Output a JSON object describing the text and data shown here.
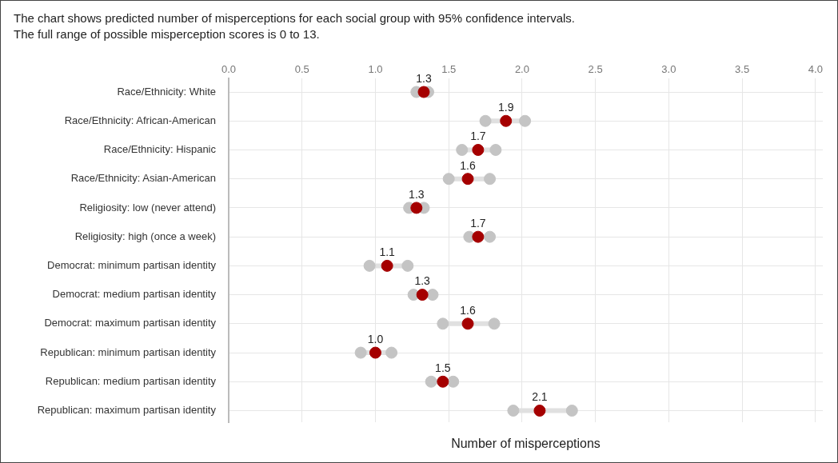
{
  "chart_data": {
    "type": "scatter",
    "orientation": "horizontal",
    "title": "The chart shows predicted number of misperceptions for each social group with 95% confidence intervals.",
    "subtitle": "The full range of possible misperception scores is 0 to 13.",
    "xlabel": "Number of misperceptions",
    "categories": [
      "Race/Ethnicity: White",
      "Race/Ethnicity: African-American",
      "Race/Ethnicity: Hispanic",
      "Race/Ethnicity: Asian-American",
      "Religiosity: low (never attend)",
      "Religiosity: high (once a week)",
      "Democrat: minimum partisan identity",
      "Democrat: medium partisan identity",
      "Democrat: maximum partisan identity",
      "Republican: minimum partisan identity",
      "Republican: medium partisan identity",
      "Republican: maximum partisan identity"
    ],
    "series": [
      {
        "color": "#c4c4c4",
        "values": [
          1.28,
          1.75,
          1.59,
          1.5,
          1.23,
          1.64,
          0.96,
          1.26,
          1.46,
          0.9,
          1.38,
          1.94
        ]
      },
      {
        "color": "#c4c4c4",
        "values": [
          1.36,
          2.02,
          1.82,
          1.78,
          1.33,
          1.78,
          1.22,
          1.39,
          1.81,
          1.11,
          1.53,
          2.34
        ]
      },
      {
        "color": "#a50000",
        "values": [
          1.33,
          1.89,
          1.7,
          1.63,
          1.28,
          1.7,
          1.08,
          1.32,
          1.63,
          1.0,
          1.46,
          2.12
        ],
        "value_labels": [
          "1.3",
          "1.9",
          "1.7",
          "1.6",
          "1.3",
          "1.7",
          "1.1",
          "1.3",
          "1.6",
          "1.0",
          "1.5",
          "2.1"
        ]
      }
    ],
    "xlim": [
      0,
      4.05
    ],
    "xticks": [
      {
        "value": 0,
        "label": "0.0"
      },
      {
        "value": 0.5,
        "label": "0.5"
      },
      {
        "value": 1,
        "label": "1.0"
      },
      {
        "value": 1.5,
        "label": "1.5"
      },
      {
        "value": 2,
        "label": "2.0"
      },
      {
        "value": 2.5,
        "label": "2.5"
      },
      {
        "value": 3,
        "label": "3.0"
      },
      {
        "value": 3.5,
        "label": "3.5"
      },
      {
        "value": 4,
        "label": "4.0"
      }
    ],
    "grid": true,
    "legend": false,
    "marker": "circle"
  }
}
